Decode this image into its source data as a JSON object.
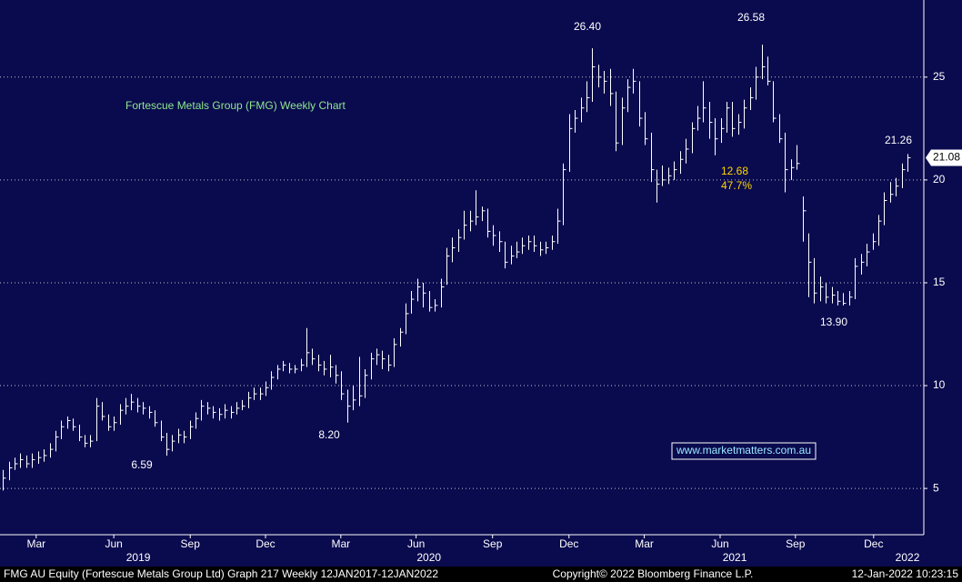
{
  "chart_data": {
    "type": "hlc",
    "title": "Fortescue Metals Group (FMG) Weekly Chart",
    "watermark": "www.marketmatters.com.au",
    "annotations": [
      "26.40",
      "26.58",
      "21.26",
      "12.68",
      "47.7%",
      "13.90",
      "8.20",
      "6.59"
    ],
    "color": "#ffffff",
    "last_price": 21.08,
    "footer": {
      "left": "FMG AU Equity (Fortescue Metals Group Ltd) Graph 217  Weekly 12JAN2017-12JAN2022",
      "center": "Copyright© 2022 Bloomberg Finance L.P.",
      "right": "12-Jan-2022 10:23:15"
    },
    "xlim": [
      0,
      158.3
    ],
    "xticks": [
      {
        "value": 6.2,
        "label": "Mar"
      },
      {
        "value": 19.5,
        "label": "Jun"
      },
      {
        "value": 32.6,
        "label": "Sep"
      },
      {
        "value": 45.5,
        "label": "Dec"
      },
      {
        "value": 58.4,
        "label": "Mar"
      },
      {
        "value": 71.3,
        "label": "Jun"
      },
      {
        "value": 84.4,
        "label": "Sep"
      },
      {
        "value": 97.5,
        "label": "Dec"
      },
      {
        "value": 110.4,
        "label": "Mar"
      },
      {
        "value": 123.4,
        "label": "Jun"
      },
      {
        "value": 136.3,
        "label": "Sep"
      },
      {
        "value": 149.7,
        "label": "Dec"
      }
    ],
    "year_labels": [
      {
        "value": 23.7,
        "label": "2019"
      },
      {
        "value": 73.5,
        "label": "2020"
      },
      {
        "value": 125.9,
        "label": "2021"
      },
      {
        "value": 155.5,
        "label": "2022"
      }
    ],
    "ylim": [
      2.75,
      28.75
    ],
    "yticks": [
      5,
      10,
      15,
      20,
      25
    ],
    "grid": true,
    "high": [
      5.9,
      6.3,
      6.5,
      6.7,
      6.6,
      6.7,
      6.8,
      6.9,
      7.2,
      7.8,
      8.3,
      8.5,
      8.4,
      8.1,
      7.6,
      7.6,
      9.4,
      9.2,
      8.6,
      8.5,
      9.1,
      9.4,
      9.6,
      9.4,
      9.2,
      9.0,
      8.8,
      8.3,
      7.7,
      7.6,
      7.9,
      7.8,
      8.3,
      8.7,
      9.3,
      9.2,
      9.0,
      8.9,
      9.1,
      9.0,
      9.2,
      9.3,
      9.7,
      9.9,
      9.9,
      10.2,
      10.7,
      11.0,
      11.2,
      11.1,
      11.0,
      11.3,
      12.8,
      11.8,
      11.5,
      11.2,
      11.5,
      11.0,
      10.7,
      9.8,
      10.0,
      11.4,
      10.8,
      11.6,
      11.8,
      11.7,
      11.5,
      12.3,
      12.8,
      14.0,
      14.6,
      15.2,
      15.0,
      14.6,
      14.2,
      15.2,
      16.7,
      17.2,
      17.6,
      18.5,
      18.5,
      19.5,
      18.7,
      18.6,
      17.8,
      17.5,
      17.0,
      16.8,
      17.0,
      17.2,
      17.3,
      17.3,
      17.0,
      17.0,
      17.3,
      18.6,
      20.8,
      23.2,
      23.4,
      24.0,
      24.8,
      26.4,
      25.6,
      25.3,
      25.4,
      24.3,
      24.0,
      24.9,
      25.4,
      24.8,
      23.3,
      22.3,
      20.5,
      20.7,
      20.6,
      20.9,
      21.4,
      22.0,
      22.8,
      23.6,
      24.8,
      23.8,
      23.0,
      23.0,
      23.8,
      23.8,
      23.2,
      23.9,
      24.5,
      25.5,
      26.58,
      26.0,
      24.8,
      23.2,
      22.3,
      21.0,
      21.7,
      19.2,
      17.4,
      16.2,
      15.3,
      15.0,
      14.8,
      14.6,
      14.5,
      14.6,
      16.2,
      16.4,
      16.9,
      17.4,
      18.3,
      19.4,
      19.9,
      20.1,
      20.8,
      21.26
    ],
    "low": [
      4.9,
      5.4,
      5.9,
      6.0,
      6.0,
      6.0,
      6.2,
      6.3,
      6.5,
      6.8,
      7.4,
      7.9,
      7.8,
      7.3,
      7.0,
      7.0,
      7.3,
      8.3,
      7.8,
      7.8,
      8.1,
      8.6,
      8.8,
      8.7,
      8.6,
      8.4,
      8.0,
      7.3,
      6.59,
      6.8,
      7.2,
      7.2,
      7.4,
      7.9,
      8.3,
      8.6,
      8.4,
      8.3,
      8.4,
      8.4,
      8.6,
      8.8,
      8.9,
      9.3,
      9.3,
      9.5,
      9.8,
      10.3,
      10.7,
      10.6,
      10.6,
      10.7,
      10.9,
      11.0,
      10.7,
      10.5,
      10.4,
      10.1,
      9.3,
      8.2,
      8.8,
      9.0,
      9.4,
      10.3,
      11.0,
      10.8,
      10.7,
      10.9,
      11.9,
      12.5,
      13.5,
      14.1,
      13.8,
      13.6,
      13.6,
      13.8,
      14.9,
      16.0,
      16.5,
      17.1,
      17.5,
      17.8,
      18.0,
      17.2,
      16.8,
      16.5,
      15.7,
      15.9,
      16.2,
      16.4,
      16.6,
      16.5,
      16.3,
      16.4,
      16.6,
      16.9,
      17.8,
      20.4,
      22.3,
      22.8,
      23.3,
      23.8,
      24.5,
      24.2,
      23.6,
      21.4,
      21.7,
      23.3,
      24.2,
      22.6,
      21.7,
      19.9,
      18.9,
      19.7,
      19.8,
      20.0,
      20.3,
      20.8,
      21.3,
      22.4,
      22.8,
      22.0,
      21.2,
      21.8,
      22.3,
      22.1,
      22.2,
      22.5,
      23.4,
      23.9,
      24.9,
      24.6,
      22.8,
      21.8,
      19.4,
      20.0,
      20.5,
      17.0,
      14.3,
      14.0,
      14.1,
      14.0,
      14.0,
      13.9,
      13.9,
      13.9,
      14.2,
      15.4,
      15.8,
      16.6,
      16.8,
      17.8,
      18.9,
      19.2,
      19.6,
      20.4
    ],
    "close": [
      5.5,
      6.0,
      6.2,
      6.4,
      6.2,
      6.4,
      6.5,
      6.6,
      6.9,
      7.5,
      8.0,
      8.3,
      8.0,
      7.5,
      7.2,
      7.3,
      9.0,
      8.5,
      8.0,
      8.2,
      8.8,
      9.0,
      9.2,
      9.0,
      8.9,
      8.7,
      8.2,
      7.5,
      6.9,
      7.3,
      7.6,
      7.5,
      8.0,
      8.4,
      9.0,
      8.9,
      8.7,
      8.6,
      8.8,
      8.7,
      8.9,
      9.0,
      9.4,
      9.6,
      9.6,
      9.9,
      10.4,
      10.8,
      11.0,
      10.8,
      10.8,
      11.0,
      11.6,
      11.3,
      11.0,
      10.8,
      10.9,
      10.5,
      9.6,
      9.0,
      9.3,
      9.5,
      10.5,
      11.3,
      11.5,
      11.3,
      11.0,
      12.0,
      12.6,
      13.5,
      14.2,
      14.8,
      14.5,
      13.8,
      13.9,
      14.8,
      16.3,
      16.7,
      17.2,
      17.8,
      18.0,
      18.2,
      18.5,
      17.5,
      17.3,
      17.0,
      16.0,
      16.3,
      16.5,
      16.8,
      17.0,
      16.8,
      16.6,
      16.7,
      17.0,
      18.0,
      20.5,
      22.5,
      23.0,
      23.5,
      24.0,
      25.5,
      25.0,
      24.8,
      24.2,
      21.8,
      23.5,
      24.5,
      24.8,
      23.0,
      22.0,
      20.5,
      19.8,
      20.0,
      20.2,
      20.5,
      21.0,
      21.5,
      22.5,
      23.0,
      23.5,
      22.8,
      22.0,
      22.5,
      23.5,
      22.5,
      22.8,
      23.5,
      24.0,
      25.0,
      25.5,
      24.8,
      23.0,
      22.0,
      20.5,
      20.6,
      20.8,
      18.5,
      16.0,
      14.5,
      14.8,
      14.3,
      14.4,
      14.1,
      14.0,
      14.3,
      15.8,
      16.0,
      16.5,
      17.0,
      18.0,
      19.0,
      19.3,
      19.7,
      20.5,
      21.08
    ]
  }
}
